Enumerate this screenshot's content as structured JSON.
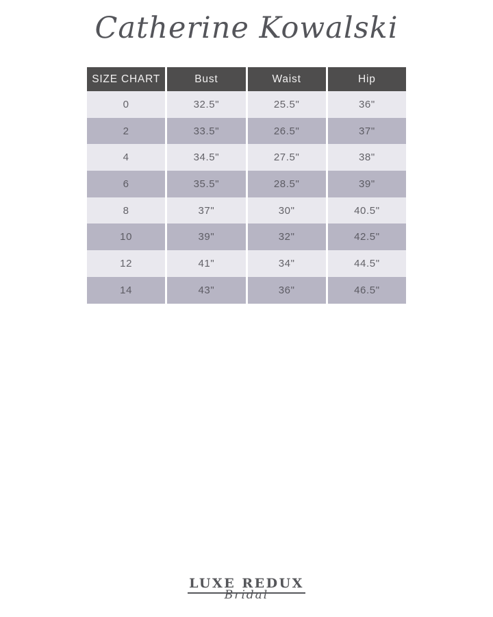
{
  "page": {
    "designer_title": "Catherine Kowalski"
  },
  "size_chart": {
    "columns": [
      "SIZE CHART",
      "Bust",
      "Waist",
      "Hip"
    ],
    "rows": [
      {
        "size": "0",
        "bust": "32.5\"",
        "waist": "25.5\"",
        "hip": "36\""
      },
      {
        "size": "2",
        "bust": "33.5\"",
        "waist": "26.5\"",
        "hip": "37\""
      },
      {
        "size": "4",
        "bust": "34.5\"",
        "waist": "27.5\"",
        "hip": "38\""
      },
      {
        "size": "6",
        "bust": "35.5\"",
        "waist": "28.5\"",
        "hip": "39\""
      },
      {
        "size": "8",
        "bust": "37\"",
        "waist": "30\"",
        "hip": "40.5\""
      },
      {
        "size": "10",
        "bust": "39\"",
        "waist": "32\"",
        "hip": "42.5\""
      },
      {
        "size": "12",
        "bust": "41\"",
        "waist": "34\"",
        "hip": "44.5\""
      },
      {
        "size": "14",
        "bust": "43\"",
        "waist": "36\"",
        "hip": "46.5\""
      }
    ]
  },
  "footer_logo": {
    "brand": "LUXE REDUX",
    "sub_brand": "Bridal"
  },
  "colors": {
    "header_bg": "#4e4d4d",
    "header_text": "#f2f1f1",
    "row_light": "#e9e8ee",
    "row_dark": "#b7b5c4",
    "cell_text": "#636268",
    "title_text": "#54555a",
    "page_bg": "#ffffff"
  }
}
